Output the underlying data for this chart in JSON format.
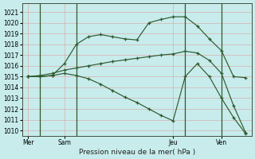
{
  "bg_color": "#c8ecec",
  "grid_color": "#dca0a0",
  "line_color": "#2d5a2d",
  "xlabel": "Pression niveau de la mer( hPa )",
  "ylim": [
    1009.5,
    1021.8
  ],
  "yticks": [
    1010,
    1011,
    1012,
    1013,
    1014,
    1015,
    1016,
    1017,
    1018,
    1019,
    1020,
    1021
  ],
  "n_xgrid": 19,
  "xtick_positions": [
    0,
    3,
    12,
    16
  ],
  "xtick_labels": [
    "Mer",
    "Sam",
    "Jeu",
    "Ven"
  ],
  "vline_x": [
    1,
    4,
    13,
    16
  ],
  "line1_x": [
    0,
    1,
    2,
    3,
    4,
    5,
    6,
    7,
    8,
    9,
    10,
    11,
    12,
    13,
    14,
    15,
    16,
    17,
    18
  ],
  "line1_y": [
    1015.0,
    1015.0,
    1015.1,
    1016.2,
    1018.0,
    1018.7,
    1018.9,
    1018.7,
    1018.5,
    1018.4,
    1020.0,
    1020.3,
    1020.55,
    1020.55,
    1019.7,
    1018.5,
    1017.4,
    1015.0,
    1014.9
  ],
  "line2_x": [
    0,
    1,
    2,
    3,
    4,
    5,
    6,
    7,
    8,
    9,
    10,
    11,
    12,
    13,
    14,
    15,
    16,
    17,
    18
  ],
  "line2_y": [
    1015.0,
    1015.1,
    1015.3,
    1015.6,
    1015.8,
    1016.0,
    1016.2,
    1016.4,
    1016.55,
    1016.7,
    1016.85,
    1017.0,
    1017.1,
    1017.35,
    1017.2,
    1016.5,
    1015.3,
    1012.3,
    1009.8
  ],
  "line3_x": [
    0,
    1,
    2,
    3,
    4,
    5,
    6,
    7,
    8,
    9,
    10,
    11,
    12,
    13,
    14,
    15,
    16,
    17,
    18
  ],
  "line3_y": [
    1015.0,
    1015.0,
    1015.1,
    1015.3,
    1015.1,
    1014.8,
    1014.3,
    1013.7,
    1013.1,
    1012.6,
    1012.0,
    1011.4,
    1010.9,
    1015.0,
    1016.2,
    1015.0,
    1013.0,
    1011.2,
    1009.7
  ],
  "xlabel_fontsize": 6.5,
  "ytick_fontsize": 5.5,
  "xtick_fontsize": 5.5
}
